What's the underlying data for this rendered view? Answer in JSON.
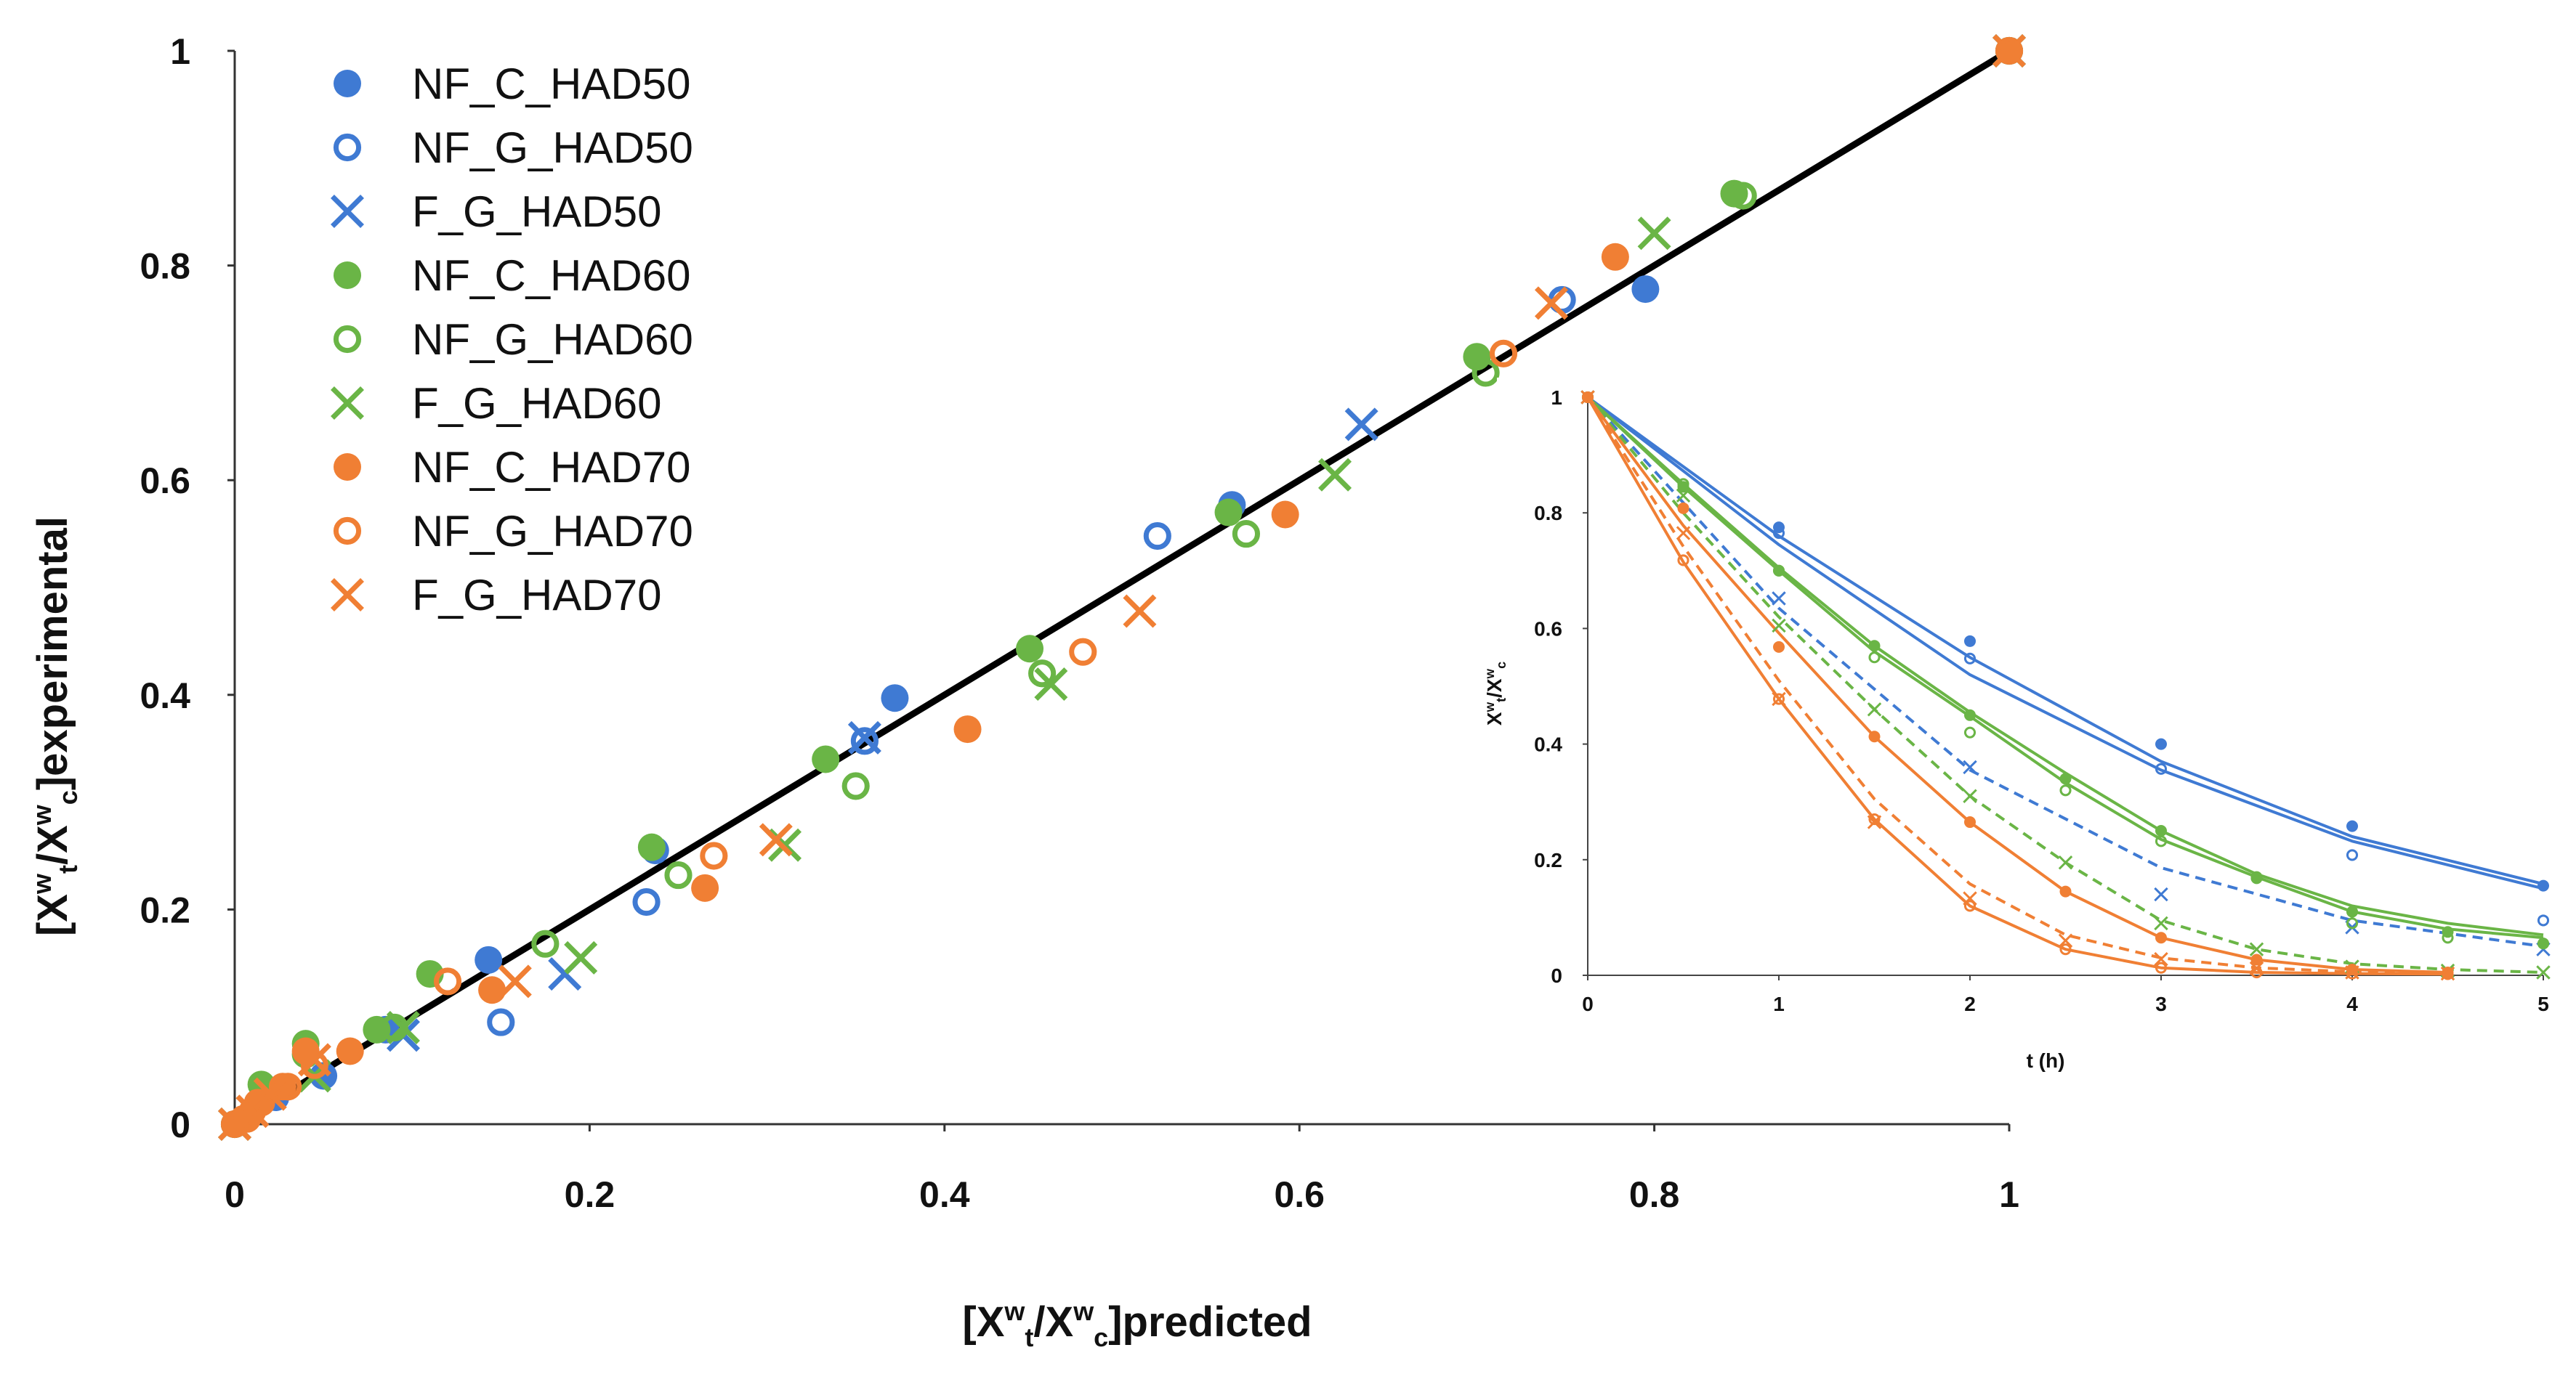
{
  "chart_data": [
    {
      "type": "scatter",
      "title": "",
      "xlabel": "[Xwt/Xwc]predicted",
      "ylabel": "[Xwt/Xwc]experimental",
      "xlim": [
        0,
        1
      ],
      "ylim": [
        0,
        1
      ],
      "xticks": [
        "0",
        "0.2",
        "0.4",
        "0.6",
        "0.8",
        "1"
      ],
      "yticks": [
        "0",
        "0.2",
        "0.4",
        "0.6",
        "0.8",
        "1"
      ],
      "reference_line": {
        "x": [
          0,
          1
        ],
        "y": [
          0,
          1
        ],
        "color": "#000000"
      },
      "legend_position": "top-left",
      "series": [
        {
          "name": "NF_C_HAD50",
          "color": "#3f7ad3",
          "marker": "filled",
          "points": [
            [
              0,
              0
            ],
            [
              0.023,
              0.025
            ],
            [
              0.05,
              0.045
            ],
            [
              0.085,
              0.088
            ],
            [
              0.143,
              0.153
            ],
            [
              0.237,
              0.255
            ],
            [
              0.372,
              0.397
            ],
            [
              0.562,
              0.577
            ],
            [
              0.795,
              0.778
            ],
            [
              1,
              1
            ]
          ]
        },
        {
          "name": "NF_G_HAD50",
          "color": "#3f7ad3",
          "marker": "open",
          "points": [
            [
              0,
              0
            ],
            [
              0.15,
              0.095
            ],
            [
              0.232,
              0.207
            ],
            [
              0.355,
              0.357
            ],
            [
              0.52,
              0.548
            ],
            [
              0.748,
              0.768
            ],
            [
              1,
              1
            ]
          ]
        },
        {
          "name": "F_G_HAD50",
          "color": "#3f7ad3",
          "marker": "x",
          "points": [
            [
              0,
              0
            ],
            [
              0.095,
              0.083
            ],
            [
              0.186,
              0.14
            ],
            [
              0.355,
              0.36
            ],
            [
              0.635,
              0.652
            ],
            [
              1,
              1
            ]
          ]
        },
        {
          "name": "NF_C_HAD60",
          "color": "#6ab546",
          "marker": "filled",
          "points": [
            [
              0,
              0
            ],
            [
              0.015,
              0.037
            ],
            [
              0.04,
              0.075
            ],
            [
              0.08,
              0.088
            ],
            [
              0.11,
              0.14
            ],
            [
              0.235,
              0.258
            ],
            [
              0.333,
              0.34
            ],
            [
              0.448,
              0.443
            ],
            [
              0.56,
              0.57
            ],
            [
              0.7,
              0.715
            ],
            [
              0.845,
              0.867
            ],
            [
              1,
              1
            ]
          ]
        },
        {
          "name": "NF_G_HAD60",
          "color": "#6ab546",
          "marker": "open",
          "points": [
            [
              0,
              0
            ],
            [
              0.04,
              0.065
            ],
            [
              0.09,
              0.09
            ],
            [
              0.175,
              0.168
            ],
            [
              0.25,
              0.232
            ],
            [
              0.35,
              0.315
            ],
            [
              0.455,
              0.42
            ],
            [
              0.57,
              0.55
            ],
            [
              0.705,
              0.7
            ],
            [
              0.85,
              0.865
            ],
            [
              1,
              1
            ]
          ]
        },
        {
          "name": "F_G_HAD60",
          "color": "#6ab546",
          "marker": "x",
          "points": [
            [
              0,
              0
            ],
            [
              0.045,
              0.045
            ],
            [
              0.095,
              0.09
            ],
            [
              0.195,
              0.155
            ],
            [
              0.31,
              0.26
            ],
            [
              0.46,
              0.41
            ],
            [
              0.62,
              0.605
            ],
            [
              0.8,
              0.83
            ],
            [
              1,
              1
            ]
          ]
        },
        {
          "name": "NF_C_HAD70",
          "color": "#f07f34",
          "marker": "filled",
          "points": [
            [
              0,
              0
            ],
            [
              0.005,
              0.005
            ],
            [
              0.01,
              0.012
            ],
            [
              0.015,
              0.02
            ],
            [
              0.027,
              0.035
            ],
            [
              0.04,
              0.068
            ],
            [
              0.065,
              0.068
            ],
            [
              0.145,
              0.125
            ],
            [
              0.265,
              0.22
            ],
            [
              0.413,
              0.368
            ],
            [
              0.592,
              0.568
            ],
            [
              0.778,
              0.808
            ],
            [
              1,
              1
            ]
          ]
        },
        {
          "name": "NF_G_HAD70",
          "color": "#f07f34",
          "marker": "open",
          "points": [
            [
              0,
              0
            ],
            [
              0.007,
              0.005
            ],
            [
              0.013,
              0.02
            ],
            [
              0.03,
              0.035
            ],
            [
              0.045,
              0.055
            ],
            [
              0.12,
              0.133
            ],
            [
              0.27,
              0.25
            ],
            [
              0.478,
              0.44
            ],
            [
              0.715,
              0.718
            ],
            [
              1,
              1
            ]
          ]
        },
        {
          "name": "F_G_HAD70",
          "color": "#f07f34",
          "marker": "x",
          "points": [
            [
              0,
              0
            ],
            [
              0.01,
              0.012
            ],
            [
              0.02,
              0.028
            ],
            [
              0.045,
              0.06
            ],
            [
              0.158,
              0.133
            ],
            [
              0.305,
              0.265
            ],
            [
              0.51,
              0.478
            ],
            [
              0.742,
              0.765
            ],
            [
              1,
              1
            ]
          ]
        }
      ]
    },
    {
      "type": "line",
      "title": "",
      "xlabel": "t (h)",
      "ylabel": "Xwt/Xwc",
      "xlim": [
        0,
        5
      ],
      "ylim": [
        0,
        1
      ],
      "xticks": [
        "0",
        "1",
        "2",
        "3",
        "4",
        "5"
      ],
      "yticks": [
        "0",
        "0.2",
        "0.4",
        "0.6",
        "0.8",
        "1"
      ],
      "series": [
        {
          "name": "NF_C_HAD50 exp",
          "color": "#3f7ad3",
          "marker": "filled",
          "x": [
            0,
            1,
            2,
            3,
            4,
            5
          ],
          "y": [
            1,
            0.775,
            0.578,
            0.4,
            0.258,
            0.155
          ]
        },
        {
          "name": "NF_C_HAD50 pred",
          "color": "#3f7ad3",
          "style": "solid",
          "x": [
            0,
            1,
            2,
            3,
            4,
            5
          ],
          "y": [
            1,
            0.76,
            0.55,
            0.37,
            0.24,
            0.158
          ]
        },
        {
          "name": "NF_G_HAD50 exp",
          "color": "#3f7ad3",
          "marker": "open",
          "x": [
            0,
            1,
            2,
            3,
            4,
            5
          ],
          "y": [
            1,
            0.765,
            0.548,
            0.357,
            0.208,
            0.095
          ]
        },
        {
          "name": "NF_G_HAD50 pred",
          "color": "#3f7ad3",
          "style": "solid",
          "x": [
            0,
            1,
            2,
            3,
            4,
            5
          ],
          "y": [
            1,
            0.745,
            0.52,
            0.355,
            0.232,
            0.15
          ]
        },
        {
          "name": "F_G_HAD50 exp",
          "color": "#3f7ad3",
          "marker": "x",
          "x": [
            0,
            1,
            2,
            3,
            4,
            5
          ],
          "y": [
            1,
            0.652,
            0.36,
            0.14,
            0.083,
            0.045
          ]
        },
        {
          "name": "F_G_HAD50 pred",
          "color": "#3f7ad3",
          "style": "dashed",
          "x": [
            0,
            1,
            2,
            3,
            4,
            5
          ],
          "y": [
            1,
            0.635,
            0.355,
            0.186,
            0.095,
            0.05
          ]
        },
        {
          "name": "NF_C_HAD60 exp",
          "color": "#6ab546",
          "marker": "filled",
          "x": [
            0,
            0.5,
            1,
            1.5,
            2,
            2.5,
            3,
            3.5,
            4,
            4.5,
            5
          ],
          "y": [
            1,
            0.845,
            0.7,
            0.57,
            0.45,
            0.34,
            0.25,
            0.17,
            0.11,
            0.075,
            0.055
          ]
        },
        {
          "name": "NF_C_HAD60 pred",
          "color": "#6ab546",
          "style": "solid",
          "x": [
            0,
            0.5,
            1,
            1.5,
            2,
            2.5,
            3,
            3.5,
            4,
            4.5,
            5
          ],
          "y": [
            1,
            0.845,
            0.7,
            0.56,
            0.448,
            0.333,
            0.235,
            0.17,
            0.11,
            0.08,
            0.065
          ]
        },
        {
          "name": "NF_G_HAD60 exp",
          "color": "#6ab546",
          "marker": "open",
          "x": [
            0,
            0.5,
            1,
            1.5,
            2,
            2.5,
            3,
            3.5,
            4,
            4.5,
            5
          ],
          "y": [
            1,
            0.85,
            0.7,
            0.55,
            0.42,
            0.32,
            0.232,
            0.168,
            0.09,
            0.065,
            0.055
          ]
        },
        {
          "name": "NF_G_HAD60 pred",
          "color": "#6ab546",
          "style": "solid",
          "x": [
            0,
            0.5,
            1,
            1.5,
            2,
            2.5,
            3,
            3.5,
            4,
            4.5,
            5
          ],
          "y": [
            1,
            0.85,
            0.705,
            0.57,
            0.455,
            0.35,
            0.25,
            0.175,
            0.12,
            0.09,
            0.07
          ]
        },
        {
          "name": "F_G_HAD60 exp",
          "color": "#6ab546",
          "marker": "x",
          "x": [
            0,
            0.5,
            1,
            1.5,
            2,
            2.5,
            3,
            3.5,
            4,
            4.5,
            5
          ],
          "y": [
            1,
            0.83,
            0.605,
            0.46,
            0.31,
            0.195,
            0.09,
            0.045,
            0.015,
            0.008,
            0.005
          ]
        },
        {
          "name": "F_G_HAD60 pred",
          "color": "#6ab546",
          "style": "dashed",
          "x": [
            0,
            0.5,
            1,
            1.5,
            2,
            2.5,
            3,
            3.5,
            4,
            4.5,
            5
          ],
          "y": [
            1,
            0.8,
            0.62,
            0.46,
            0.31,
            0.195,
            0.095,
            0.045,
            0.02,
            0.01,
            0.005
          ]
        },
        {
          "name": "NF_C_HAD70 exp",
          "color": "#f07f34",
          "marker": "filled",
          "x": [
            0,
            0.5,
            1,
            1.5,
            2,
            2.5,
            3,
            3.5,
            4,
            4.5
          ],
          "y": [
            1,
            0.808,
            0.568,
            0.413,
            0.265,
            0.145,
            0.065,
            0.027,
            0.01,
            0.005
          ]
        },
        {
          "name": "NF_C_HAD70 pred",
          "color": "#f07f34",
          "style": "solid",
          "x": [
            0,
            0.5,
            1,
            1.5,
            2,
            2.5,
            3,
            3.5,
            4,
            4.5
          ],
          "y": [
            1,
            0.778,
            0.592,
            0.413,
            0.265,
            0.145,
            0.065,
            0.027,
            0.01,
            0.005
          ]
        },
        {
          "name": "NF_G_HAD70 exp",
          "color": "#f07f34",
          "marker": "open",
          "x": [
            0,
            0.5,
            1,
            1.5,
            2,
            2.5,
            3,
            3.5,
            4,
            4.5
          ],
          "y": [
            1,
            0.718,
            0.478,
            0.27,
            0.12,
            0.045,
            0.013,
            0.005,
            0.003,
            0.002
          ]
        },
        {
          "name": "NF_G_HAD70 pred",
          "color": "#f07f34",
          "style": "solid",
          "x": [
            0,
            0.5,
            1,
            1.5,
            2,
            2.5,
            3,
            3.5,
            4,
            4.5
          ],
          "y": [
            1,
            0.715,
            0.478,
            0.27,
            0.12,
            0.045,
            0.013,
            0.005,
            0.003,
            0.002
          ]
        },
        {
          "name": "F_G_HAD70 exp",
          "color": "#f07f34",
          "marker": "x",
          "x": [
            0,
            0.5,
            1,
            1.5,
            2,
            2.5,
            3,
            3.5,
            4,
            4.5
          ],
          "y": [
            1,
            0.765,
            0.478,
            0.265,
            0.133,
            0.06,
            0.028,
            0.012,
            0.005,
            0.003
          ]
        },
        {
          "name": "F_G_HAD70 pred",
          "color": "#f07f34",
          "style": "dashed",
          "x": [
            0,
            0.5,
            1,
            1.5,
            2,
            2.5,
            3,
            3.5,
            4,
            4.5
          ],
          "y": [
            1,
            0.742,
            0.51,
            0.305,
            0.158,
            0.07,
            0.03,
            0.013,
            0.006,
            0.003
          ]
        }
      ]
    }
  ]
}
